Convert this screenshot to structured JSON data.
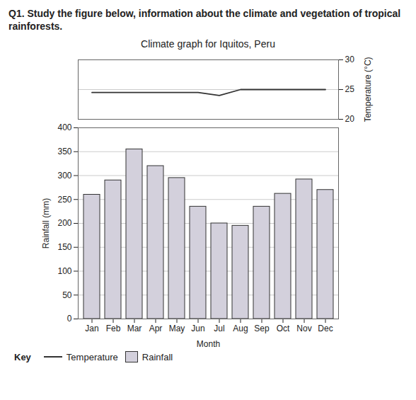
{
  "chart_data": {
    "type": "bar",
    "annotations": [
      "Q1. Study the figure below, information about the climate and vegetation of tropical rainforests."
    ],
    "title": "Climate graph for Iquitos, Peru",
    "x_label": "Month",
    "y_label": "Rainfall (mm)",
    "y2_label": "Temperature (°C)",
    "legend_title": "Key",
    "categories": [
      "Jan",
      "Feb",
      "Mar",
      "Apr",
      "May",
      "Jun",
      "Jul",
      "Aug",
      "Sep",
      "Oct",
      "Nov",
      "Dec"
    ],
    "series": [
      {
        "name": "Rainfall",
        "type": "bar",
        "color": "#d3d0dc",
        "values": [
          260,
          290,
          355,
          320,
          295,
          235,
          200,
          195,
          235,
          262,
          292,
          270
        ]
      },
      {
        "name": "Temperature",
        "type": "line",
        "axis": "y2",
        "color": "#333333",
        "values": [
          24.5,
          24.5,
          24.5,
          24.5,
          24.5,
          24.5,
          24,
          25,
          25,
          25,
          25,
          25
        ]
      }
    ],
    "ylim": [
      0,
      400
    ],
    "yticks": [
      0,
      50,
      100,
      150,
      200,
      250,
      300,
      350,
      400
    ],
    "y2lim": [
      20,
      30
    ],
    "y2ticks": [
      20,
      25,
      30
    ],
    "grid": true,
    "legend": "bottom-left"
  }
}
